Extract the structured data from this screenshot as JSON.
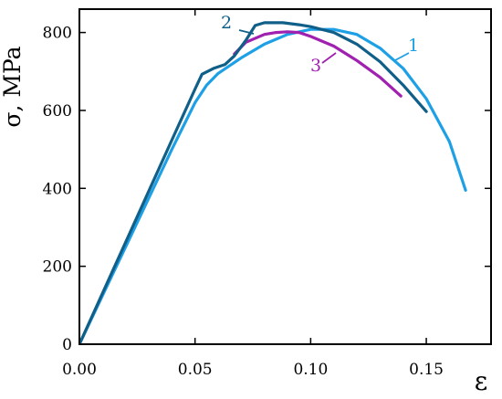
{
  "chart_data": {
    "type": "line",
    "xlabel": "ε",
    "ylabel": "σ, MPa",
    "xlim": [
      0,
      0.178
    ],
    "ylim": [
      0,
      860
    ],
    "xticks": [
      0.0,
      0.05,
      0.1,
      0.15
    ],
    "xtick_labels": [
      "0.00",
      "0.05",
      "0.10",
      "0.15"
    ],
    "yticks": [
      0,
      200,
      400,
      600,
      800
    ],
    "ytick_labels": [
      "0",
      "200",
      "400",
      "600",
      "800"
    ],
    "grid": false,
    "series": [
      {
        "name": "1",
        "color": "#1ea0e6",
        "points": [
          [
            0,
            0
          ],
          [
            0.01,
            125
          ],
          [
            0.02,
            250
          ],
          [
            0.03,
            375
          ],
          [
            0.04,
            500
          ],
          [
            0.05,
            620
          ],
          [
            0.055,
            665
          ],
          [
            0.06,
            695
          ],
          [
            0.07,
            735
          ],
          [
            0.08,
            770
          ],
          [
            0.09,
            795
          ],
          [
            0.1,
            808
          ],
          [
            0.11,
            808
          ],
          [
            0.12,
            795
          ],
          [
            0.13,
            760
          ],
          [
            0.14,
            708
          ],
          [
            0.15,
            630
          ],
          [
            0.16,
            520
          ],
          [
            0.167,
            395
          ]
        ],
        "label_anchor": [
          0.159,
          745
        ]
      },
      {
        "name": "2",
        "color": "#105f88",
        "points": [
          [
            0,
            0
          ],
          [
            0.01,
            131
          ],
          [
            0.02,
            262
          ],
          [
            0.03,
            393
          ],
          [
            0.04,
            524
          ],
          [
            0.05,
            655
          ],
          [
            0.053,
            693
          ],
          [
            0.058,
            708
          ],
          [
            0.063,
            718
          ],
          [
            0.067,
            740
          ],
          [
            0.072,
            780
          ],
          [
            0.076,
            818
          ],
          [
            0.08,
            825
          ],
          [
            0.088,
            825
          ],
          [
            0.095,
            820
          ],
          [
            0.1,
            815
          ],
          [
            0.11,
            800
          ],
          [
            0.12,
            770
          ],
          [
            0.13,
            725
          ],
          [
            0.14,
            665
          ],
          [
            0.15,
            597
          ]
        ],
        "label_anchor": [
          0.069,
          815
        ]
      },
      {
        "name": "3",
        "color": "#a020b0",
        "points": [
          [
            0.067,
            745
          ],
          [
            0.072,
            775
          ],
          [
            0.08,
            795
          ],
          [
            0.085,
            800
          ],
          [
            0.09,
            802
          ],
          [
            0.095,
            800
          ],
          [
            0.1,
            790
          ],
          [
            0.11,
            765
          ],
          [
            0.12,
            728
          ],
          [
            0.13,
            685
          ],
          [
            0.139,
            637
          ]
        ],
        "label_anchor": [
          0.108,
          745
        ]
      }
    ],
    "label_marks": {
      "1": "1",
      "2": "2",
      "3": "3"
    }
  }
}
